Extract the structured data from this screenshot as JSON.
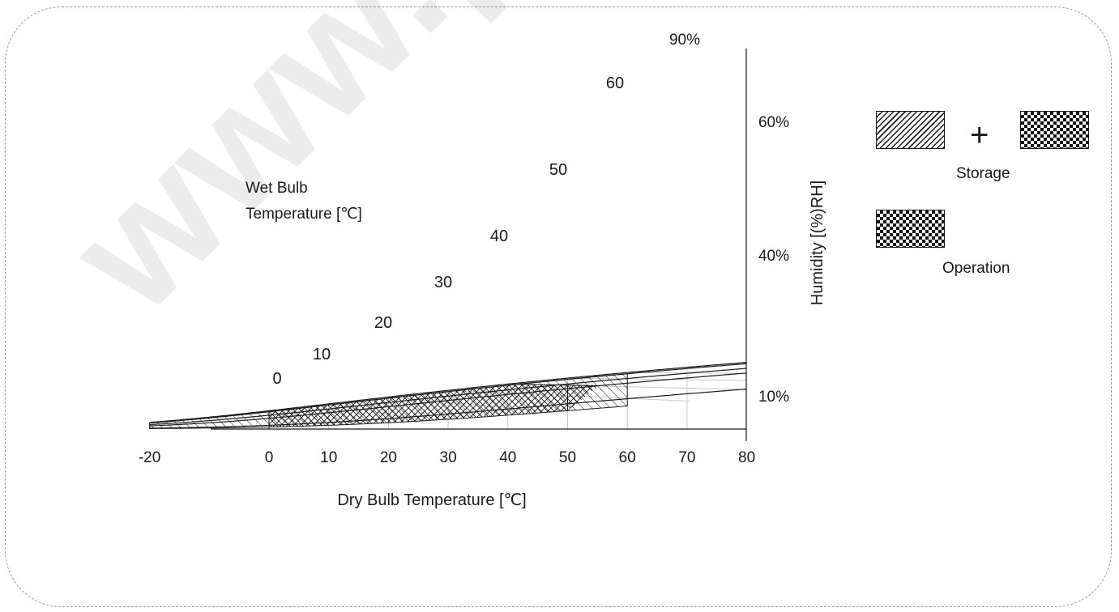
{
  "watermark": "www.panc",
  "chart_data": {
    "type": "psychrometric",
    "xlabel": "Dry Bulb Temperature [℃]",
    "ylabel": "Humidity [(%)RH]",
    "x_ticks": [
      "-20",
      "0",
      "10",
      "20",
      "30",
      "40",
      "50",
      "60",
      "70",
      "80"
    ],
    "xlim": [
      -20,
      80
    ],
    "wet_bulb_label_line1": "Wet Bulb",
    "wet_bulb_label_line2": "Temperature [℃]",
    "wet_bulb_ticks": [
      "0",
      "10",
      "20",
      "30",
      "40",
      "50",
      "60"
    ],
    "rh_curves": [
      "90%",
      "60%",
      "40%",
      "10%"
    ],
    "regions": [
      {
        "name": "Storage",
        "pattern": "diagonal-hatch",
        "dry_bulb": [
          -20,
          60
        ]
      },
      {
        "name": "Operation",
        "pattern": "cross-hatch",
        "dry_bulb": [
          0,
          50
        ],
        "max_wet_bulb": 40
      }
    ],
    "grid": true
  },
  "legend": {
    "storage_label": "Storage",
    "operation_label": "Operation",
    "plus_symbol": "+"
  }
}
